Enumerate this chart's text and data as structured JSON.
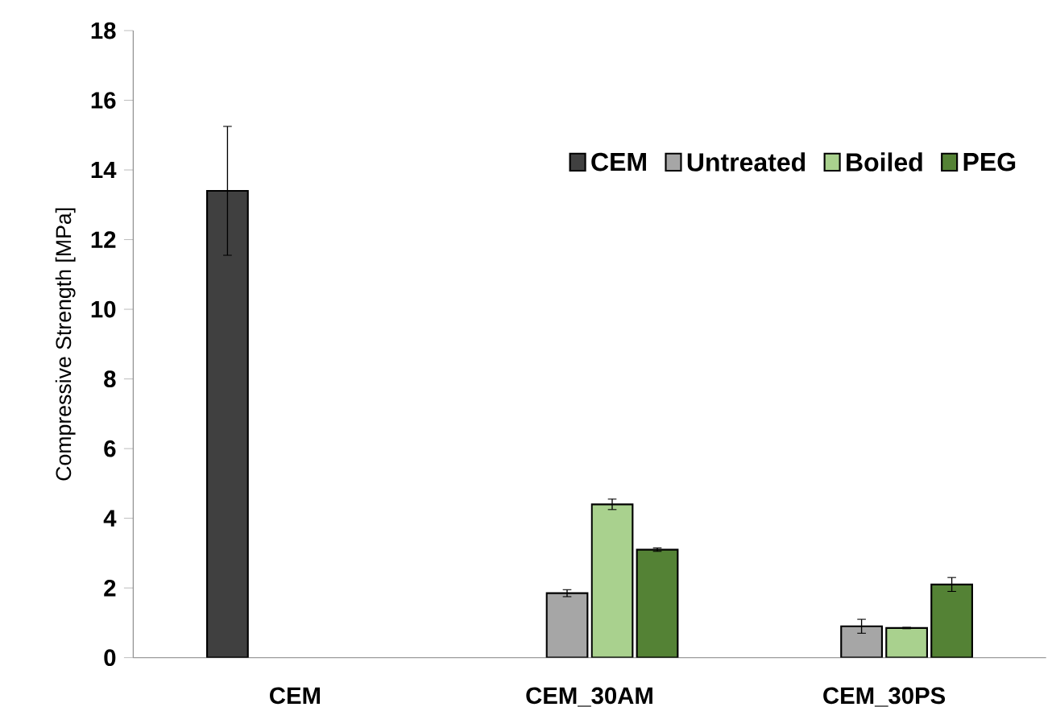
{
  "chart_data": {
    "type": "bar",
    "ylabel": "Compressive Strength [MPa]",
    "categories": [
      "CEM",
      "CEM_30AM",
      "CEM_30PS"
    ],
    "series": [
      {
        "name": "CEM",
        "color": "#404040",
        "values": [
          13.4,
          null,
          null
        ],
        "errors": [
          1.85,
          null,
          null
        ]
      },
      {
        "name": "Untreated",
        "color": "#a6a6a6",
        "values": [
          null,
          1.85,
          0.9
        ],
        "errors": [
          null,
          0.1,
          0.2
        ]
      },
      {
        "name": "Boiled",
        "color": "#a9d18e",
        "values": [
          null,
          4.4,
          0.85
        ],
        "errors": [
          null,
          0.15,
          0.02
        ]
      },
      {
        "name": "PEG",
        "color": "#548235",
        "values": [
          null,
          3.1,
          2.1
        ],
        "errors": [
          null,
          0.05,
          0.2
        ]
      }
    ],
    "ylim": [
      0,
      18
    ],
    "yticks": [
      0,
      2,
      4,
      6,
      8,
      10,
      12,
      14,
      16,
      18
    ],
    "legend": "top right",
    "grid": false
  }
}
